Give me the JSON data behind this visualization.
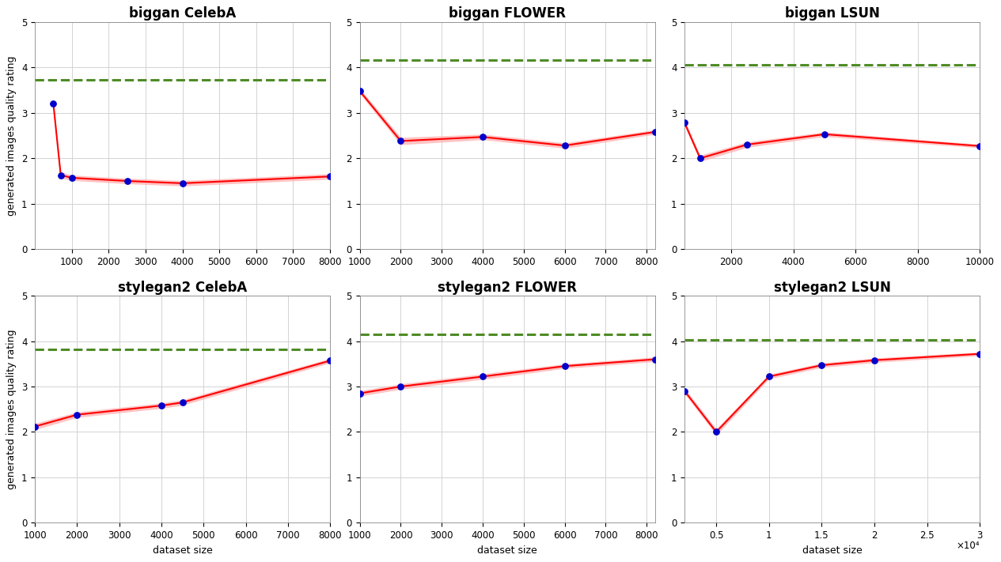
{
  "subplots": [
    {
      "title": "biggan CelebA",
      "x": [
        500,
        700,
        1000,
        2500,
        4000,
        8000
      ],
      "y": [
        3.2,
        1.63,
        1.57,
        1.5,
        1.45,
        1.6
      ],
      "y_upper": [
        3.25,
        1.7,
        1.63,
        1.56,
        1.51,
        1.66
      ],
      "y_lower": [
        3.15,
        1.56,
        1.51,
        1.44,
        1.39,
        1.54
      ],
      "hline": 3.72,
      "xlim": [
        0,
        8000
      ],
      "xticks": [
        1000,
        2000,
        3000,
        4000,
        5000,
        6000,
        7000,
        8000
      ],
      "ylim": [
        0,
        5
      ],
      "xticklabels": [
        "1000",
        "2000",
        "3000",
        "4000",
        "5000",
        "6000",
        "7000",
        "8000"
      ],
      "sci_x": false
    },
    {
      "title": "biggan FLOWER",
      "x": [
        1000,
        2000,
        4000,
        6000,
        8200
      ],
      "y": [
        3.48,
        2.38,
        2.47,
        2.28,
        2.58
      ],
      "y_upper": [
        3.54,
        2.46,
        2.53,
        2.34,
        2.63
      ],
      "y_lower": [
        3.42,
        2.3,
        2.41,
        2.22,
        2.53
      ],
      "hline": 4.17,
      "xlim": [
        1000,
        8200
      ],
      "xticks": [
        1000,
        2000,
        3000,
        4000,
        5000,
        6000,
        7000,
        8000
      ],
      "ylim": [
        0,
        5
      ],
      "xticklabels": [
        "1000",
        "2000",
        "3000",
        "4000",
        "5000",
        "6000",
        "7000",
        "8000"
      ],
      "sci_x": false
    },
    {
      "title": "biggan LSUN",
      "x": [
        500,
        1000,
        2500,
        5000,
        10000
      ],
      "y": [
        2.78,
        2.0,
        2.3,
        2.53,
        2.27
      ],
      "y_upper": [
        2.84,
        2.07,
        2.36,
        2.58,
        2.31
      ],
      "y_lower": [
        2.72,
        1.93,
        2.24,
        2.48,
        2.23
      ],
      "hline": 4.06,
      "xlim": [
        500,
        10000
      ],
      "xticks": [
        2000,
        4000,
        6000,
        8000,
        10000
      ],
      "ylim": [
        0,
        5
      ],
      "xticklabels": [
        "2000",
        "4000",
        "6000",
        "8000",
        "10000"
      ],
      "sci_x": false
    },
    {
      "title": "stylegan2 CelebA",
      "x": [
        1000,
        2000,
        4000,
        4500,
        8000
      ],
      "y": [
        2.12,
        2.38,
        2.58,
        2.65,
        3.57
      ],
      "y_upper": [
        2.19,
        2.44,
        2.64,
        2.71,
        3.62
      ],
      "y_lower": [
        2.05,
        2.32,
        2.52,
        2.59,
        3.52
      ],
      "hline": 3.82,
      "xlim": [
        1000,
        8000
      ],
      "xticks": [
        1000,
        2000,
        3000,
        4000,
        5000,
        6000,
        7000,
        8000
      ],
      "ylim": [
        0,
        5
      ],
      "xticklabels": [
        "1000",
        "2000",
        "3000",
        "4000",
        "5000",
        "6000",
        "7000",
        "8000"
      ],
      "sci_x": false
    },
    {
      "title": "stylegan2 FLOWER",
      "x": [
        1000,
        2000,
        4000,
        6000,
        8200
      ],
      "y": [
        2.85,
        3.0,
        3.22,
        3.45,
        3.6
      ],
      "y_upper": [
        2.91,
        3.06,
        3.28,
        3.5,
        3.65
      ],
      "y_lower": [
        2.79,
        2.94,
        3.16,
        3.4,
        3.55
      ],
      "hline": 4.15,
      "xlim": [
        1000,
        8200
      ],
      "xticks": [
        1000,
        2000,
        3000,
        4000,
        5000,
        6000,
        7000,
        8000
      ],
      "ylim": [
        0,
        5
      ],
      "xticklabels": [
        "1000",
        "2000",
        "3000",
        "4000",
        "5000",
        "6000",
        "7000",
        "8000"
      ],
      "sci_x": false
    },
    {
      "title": "stylegan2 LSUN",
      "x": [
        2000,
        5000,
        10000,
        15000,
        20000,
        30000
      ],
      "y": [
        2.9,
        2.0,
        3.22,
        3.47,
        3.58,
        3.72
      ],
      "y_upper": [
        2.96,
        2.07,
        3.27,
        3.52,
        3.63,
        3.76
      ],
      "y_lower": [
        2.84,
        1.93,
        3.17,
        3.42,
        3.53,
        3.68
      ],
      "hline": 4.03,
      "xlim": [
        2000,
        30000
      ],
      "xticks": [
        5000,
        10000,
        15000,
        20000,
        25000,
        30000
      ],
      "ylim": [
        0,
        5
      ],
      "xticklabels": [
        "0.5",
        "1",
        "1.5",
        "2",
        "2.5",
        "3"
      ],
      "sci_x": true,
      "sci_label": "×10⁴"
    }
  ],
  "line_color": "#FF0000",
  "fill_color": "#FFAAAA",
  "dot_color": "#0000CC",
  "hline_color": "#4E8B26",
  "ylabel": "generated images quality rating",
  "xlabel": "dataset size",
  "grid_color": "#D3D3D3",
  "bg_color": "#FFFFFF",
  "title_fontsize": 12,
  "label_fontsize": 9,
  "tick_fontsize": 8.5
}
